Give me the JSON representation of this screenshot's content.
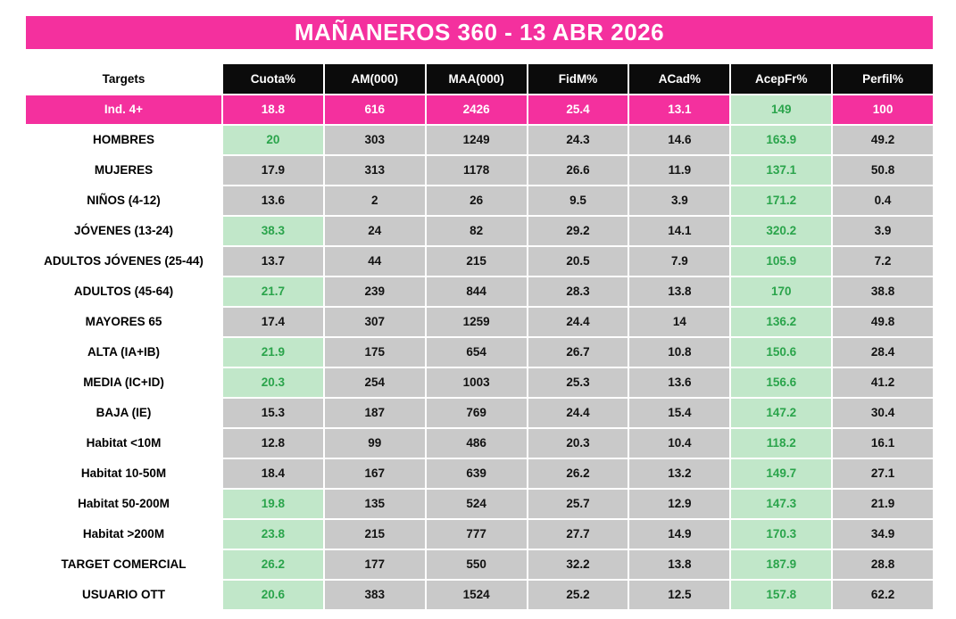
{
  "title": "MAÑANEROS 360 - 13 ABR 2026",
  "colors": {
    "pink": "#F4309E",
    "header_black": "#0B0B0B",
    "cell_gray": "#C9C9C9",
    "cell_green_bg": "#C1E7C9",
    "cell_green_text": "#2AA44B",
    "white": "#FFFFFF"
  },
  "chart_data": {
    "type": "table",
    "title": "MAÑANEROS 360 - 13 ABR 2026",
    "columns": [
      "Targets",
      "Cuota%",
      "AM(000)",
      "MAA(000)",
      "FidM%",
      "ACad%",
      "AcepFr%",
      "Perfil%"
    ],
    "rows": [
      {
        "target": "Ind. 4+",
        "target_style": "pink",
        "values": [
          18.8,
          616,
          2426,
          25.4,
          13.1,
          149,
          100
        ],
        "styles": [
          "pink",
          "pink",
          "pink",
          "pink",
          "pink",
          "green",
          "pink"
        ]
      },
      {
        "target": "HOMBRES",
        "target_style": "white",
        "values": [
          20,
          303,
          1249,
          24.3,
          14.6,
          163.9,
          49.2
        ],
        "styles": [
          "green",
          "gray",
          "gray",
          "gray",
          "gray",
          "green",
          "gray"
        ]
      },
      {
        "target": "MUJERES",
        "target_style": "white",
        "values": [
          17.9,
          313,
          1178,
          26.6,
          11.9,
          137.1,
          50.8
        ],
        "styles": [
          "gray",
          "gray",
          "gray",
          "gray",
          "gray",
          "green",
          "gray"
        ]
      },
      {
        "target": "NIÑOS (4-12)",
        "target_style": "white",
        "values": [
          13.6,
          2,
          26,
          9.5,
          3.9,
          171.2,
          0.4
        ],
        "styles": [
          "gray",
          "gray",
          "gray",
          "gray",
          "gray",
          "green",
          "gray"
        ]
      },
      {
        "target": "JÓVENES (13-24)",
        "target_style": "white",
        "values": [
          38.3,
          24,
          82,
          29.2,
          14.1,
          320.2,
          3.9
        ],
        "styles": [
          "green",
          "gray",
          "gray",
          "gray",
          "gray",
          "green",
          "gray"
        ]
      },
      {
        "target": "ADULTOS JÓVENES (25-44)",
        "target_style": "white",
        "values": [
          13.7,
          44,
          215,
          20.5,
          7.9,
          105.9,
          7.2
        ],
        "styles": [
          "gray",
          "gray",
          "gray",
          "gray",
          "gray",
          "green",
          "gray"
        ]
      },
      {
        "target": "ADULTOS (45-64)",
        "target_style": "white",
        "values": [
          21.7,
          239,
          844,
          28.3,
          13.8,
          170,
          38.8
        ],
        "styles": [
          "green",
          "gray",
          "gray",
          "gray",
          "gray",
          "green",
          "gray"
        ]
      },
      {
        "target": "MAYORES 65",
        "target_style": "white",
        "values": [
          17.4,
          307,
          1259,
          24.4,
          14,
          136.2,
          49.8
        ],
        "styles": [
          "gray",
          "gray",
          "gray",
          "gray",
          "gray",
          "green",
          "gray"
        ]
      },
      {
        "target": "ALTA (IA+IB)",
        "target_style": "white",
        "values": [
          21.9,
          175,
          654,
          26.7,
          10.8,
          150.6,
          28.4
        ],
        "styles": [
          "green",
          "gray",
          "gray",
          "gray",
          "gray",
          "green",
          "gray"
        ]
      },
      {
        "target": "MEDIA (IC+ID)",
        "target_style": "white",
        "values": [
          20.3,
          254,
          1003,
          25.3,
          13.6,
          156.6,
          41.2
        ],
        "styles": [
          "green",
          "gray",
          "gray",
          "gray",
          "gray",
          "green",
          "gray"
        ]
      },
      {
        "target": "BAJA (IE)",
        "target_style": "white",
        "values": [
          15.3,
          187,
          769,
          24.4,
          15.4,
          147.2,
          30.4
        ],
        "styles": [
          "gray",
          "gray",
          "gray",
          "gray",
          "gray",
          "green",
          "gray"
        ]
      },
      {
        "target": "Habitat <10M",
        "target_style": "white",
        "values": [
          12.8,
          99,
          486,
          20.3,
          10.4,
          118.2,
          16.1
        ],
        "styles": [
          "gray",
          "gray",
          "gray",
          "gray",
          "gray",
          "green",
          "gray"
        ]
      },
      {
        "target": "Habitat 10-50M",
        "target_style": "white",
        "values": [
          18.4,
          167,
          639,
          26.2,
          13.2,
          149.7,
          27.1
        ],
        "styles": [
          "gray",
          "gray",
          "gray",
          "gray",
          "gray",
          "green",
          "gray"
        ]
      },
      {
        "target": "Habitat 50-200M",
        "target_style": "white",
        "values": [
          19.8,
          135,
          524,
          25.7,
          12.9,
          147.3,
          21.9
        ],
        "styles": [
          "green",
          "gray",
          "gray",
          "gray",
          "gray",
          "green",
          "gray"
        ]
      },
      {
        "target": "Habitat >200M",
        "target_style": "white",
        "values": [
          23.8,
          215,
          777,
          27.7,
          14.9,
          170.3,
          34.9
        ],
        "styles": [
          "green",
          "gray",
          "gray",
          "gray",
          "gray",
          "green",
          "gray"
        ]
      },
      {
        "target": "TARGET COMERCIAL",
        "target_style": "white",
        "values": [
          26.2,
          177,
          550,
          32.2,
          13.8,
          187.9,
          28.8
        ],
        "styles": [
          "green",
          "gray",
          "gray",
          "gray",
          "gray",
          "green",
          "gray"
        ]
      },
      {
        "target": "USUARIO OTT",
        "target_style": "white",
        "values": [
          20.6,
          383,
          1524,
          25.2,
          12.5,
          157.8,
          62.2
        ],
        "styles": [
          "green",
          "gray",
          "gray",
          "gray",
          "gray",
          "green",
          "gray"
        ]
      }
    ]
  }
}
